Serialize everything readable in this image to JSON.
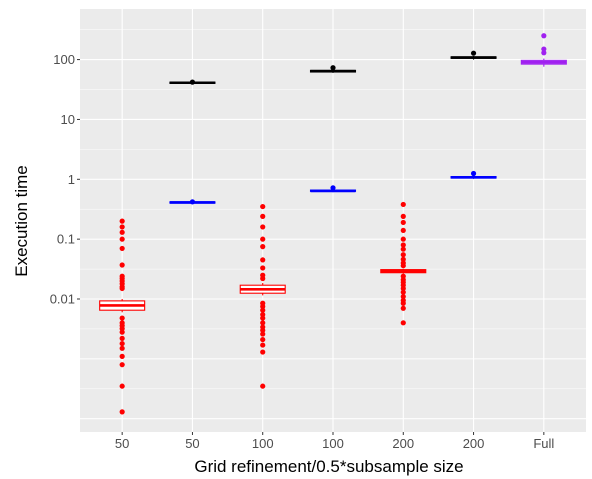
{
  "chart_data": {
    "type": "boxplot",
    "xlabel": "Grid refinement/0.5*subsample size",
    "ylabel": "Execution time",
    "y_scale": "log10",
    "ylim": [
      6e-05,
      700
    ],
    "y_ticks": [
      {
        "value": 0.01,
        "label": "0.01"
      },
      {
        "value": 0.1,
        "label": "0.1"
      },
      {
        "value": 1,
        "label": "1"
      },
      {
        "value": 10,
        "label": "10"
      },
      {
        "value": 100,
        "label": "100"
      }
    ],
    "categories": [
      "50",
      "50",
      "100",
      "100",
      "200",
      "200",
      "Full"
    ],
    "boxes": [
      {
        "category": "50",
        "color": "#ff0000",
        "q1": 0.0065,
        "median": 0.0078,
        "q3": 0.0093,
        "whisker_low": 0.006,
        "whisker_high": 0.01,
        "outliers": [
          0.2,
          0.16,
          0.13,
          0.1,
          0.07,
          0.037,
          0.024,
          0.022,
          0.02,
          0.018,
          0.016,
          0.015,
          0.0048,
          0.004,
          0.0036,
          0.0032,
          0.0028,
          0.0022,
          0.0018,
          0.0015,
          0.0011,
          0.0008,
          0.00035,
          0.00013
        ]
      },
      {
        "category": "50",
        "color": "#000000",
        "q1": 40,
        "median": 41,
        "q3": 42,
        "whisker_low": 39,
        "whisker_high": 43,
        "outliers": [
          42
        ]
      },
      {
        "category": "100",
        "color": "#ff0000",
        "q1": 0.0125,
        "median": 0.0145,
        "q3": 0.017,
        "whisker_low": 0.0115,
        "whisker_high": 0.0185,
        "outliers": [
          0.35,
          0.24,
          0.16,
          0.1,
          0.075,
          0.045,
          0.033,
          0.025,
          0.022,
          0.0085,
          0.0075,
          0.0065,
          0.0055,
          0.0048,
          0.004,
          0.0034,
          0.003,
          0.0026,
          0.0021,
          0.0017,
          0.0013,
          0.00035
        ]
      },
      {
        "category": "100",
        "color": "#000000",
        "q1": 62,
        "median": 64,
        "q3": 66,
        "whisker_low": 60,
        "whisker_high": 68,
        "outliers": [
          73
        ]
      },
      {
        "category": "200",
        "color": "#ff0000",
        "q1": 0.0275,
        "median": 0.029,
        "q3": 0.031,
        "whisker_low": 0.0265,
        "whisker_high": 0.032,
        "outliers": [
          0.38,
          0.24,
          0.19,
          0.14,
          0.1,
          0.08,
          0.068,
          0.055,
          0.046,
          0.04,
          0.036,
          0.024,
          0.021,
          0.019,
          0.017,
          0.015,
          0.013,
          0.011,
          0.0095,
          0.0085,
          0.007,
          0.004
        ]
      },
      {
        "category": "200",
        "color": "#000000",
        "q1": 105,
        "median": 108,
        "q3": 111,
        "whisker_low": 100,
        "whisker_high": 115,
        "outliers": [
          128
        ]
      },
      {
        "category": "Full",
        "color": "#a020f0",
        "q1": 84,
        "median": 90,
        "q3": 97,
        "whisker_low": 76,
        "whisker_high": 104,
        "outliers": [
          250,
          150,
          130
        ]
      }
    ],
    "overlay_boxes": [
      {
        "category_index": 1,
        "color": "#0000ff",
        "q1": 0.4,
        "median": 0.41,
        "q3": 0.42,
        "whisker_low": 0.39,
        "whisker_high": 0.43,
        "outliers": [
          0.42
        ]
      },
      {
        "category_index": 3,
        "color": "#0000ff",
        "q1": 0.63,
        "median": 0.64,
        "q3": 0.66,
        "whisker_low": 0.61,
        "whisker_high": 0.67,
        "outliers": [
          0.72
        ]
      },
      {
        "category_index": 5,
        "color": "#0000ff",
        "q1": 1.05,
        "median": 1.08,
        "q3": 1.11,
        "whisker_low": 1.02,
        "whisker_high": 1.14,
        "outliers": [
          1.25
        ]
      }
    ],
    "panel_background": "#ebebeb",
    "grid_color": "#ffffff",
    "grid": true,
    "legend": "none"
  }
}
